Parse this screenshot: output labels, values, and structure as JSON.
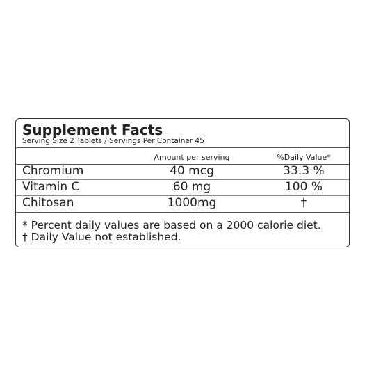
{
  "header": {
    "title": "Supplement Facts",
    "serving": "Serving Size 2 Tablets / Servings Per Container 45"
  },
  "table": {
    "columns": [
      "Amount per serving",
      "%Daily Value*"
    ],
    "rows": [
      [
        "Chromium",
        "40 mcg",
        "33.3 %"
      ],
      [
        "Vitamin C",
        "60 mg",
        "100 %"
      ],
      [
        "Chitosan",
        "1000mg",
        "†"
      ]
    ]
  },
  "footnotes": [
    "* Percent daily values are based on a 2000 calorie diet.",
    "† Daily Value not established."
  ]
}
